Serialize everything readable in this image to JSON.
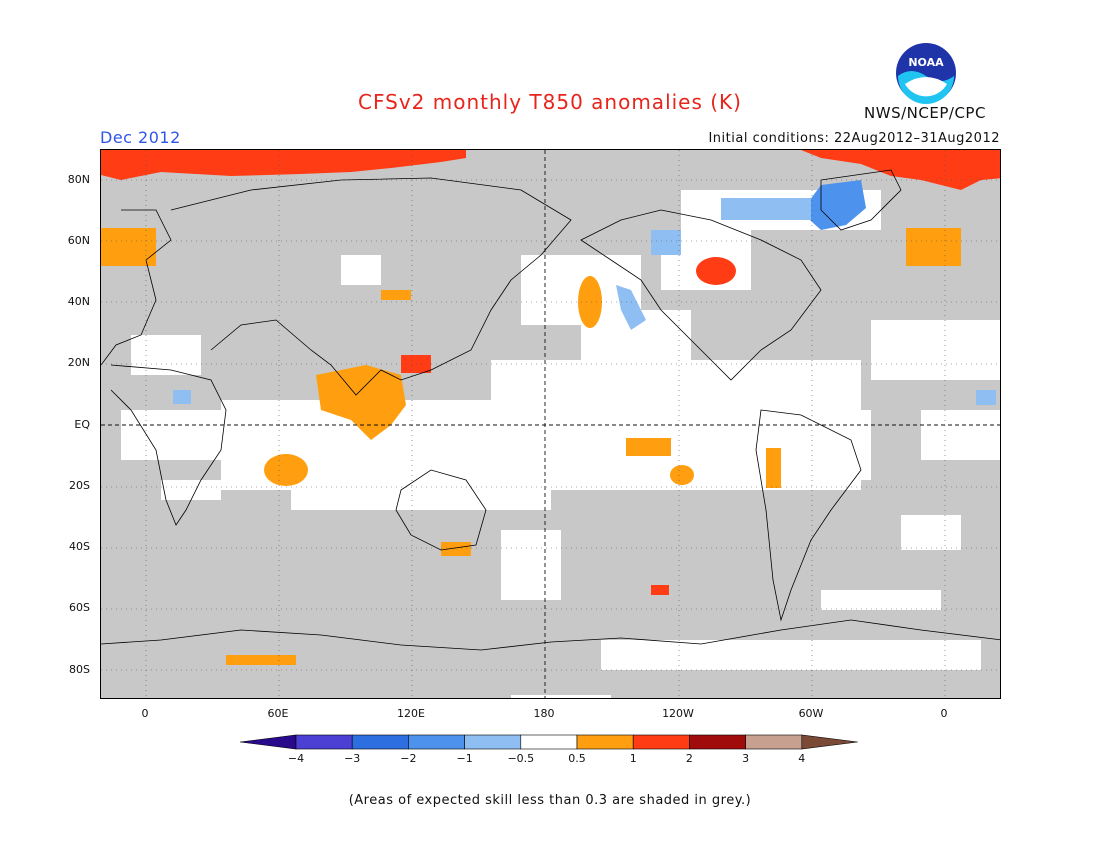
{
  "title": "CFSv2 monthly T850 anomalies (K)",
  "valid_month": "Dec 2012",
  "initial_conditions": "Initial conditions: 22Aug2012–31Aug2012",
  "agency": "NWS/NCEP/CPC",
  "logo_text": "NOAA",
  "lat_labels": [
    "80N",
    "60N",
    "40N",
    "20N",
    "EQ",
    "20S",
    "40S",
    "60S",
    "80S"
  ],
  "lon_labels": [
    "0",
    "60E",
    "120E",
    "180",
    "120W",
    "60W",
    "0"
  ],
  "colorbar": {
    "tick_labels": [
      "−4",
      "−3",
      "−2",
      "−1",
      "−0.5",
      "0.5",
      "1",
      "2",
      "3",
      "4"
    ],
    "colors": [
      "#2a0a8c",
      "#4b3fd4",
      "#2d6fe0",
      "#4d93ee",
      "#8fbef2",
      "#ffffff",
      "#ff9e0f",
      "#ff3c14",
      "#a00c0c",
      "#c8a090",
      "#7a4a36"
    ]
  },
  "footnote": "(Areas of expected skill less than 0.3 are shaded in grey.)",
  "map_colors": {
    "skill_mask": "#c8c8c8",
    "neutral": "#ffffff",
    "warm1": "#ff9e0f",
    "warm2": "#ff3c14",
    "cool1": "#4d93ee",
    "cool2": "#8fbef2",
    "coast": "#000000"
  }
}
